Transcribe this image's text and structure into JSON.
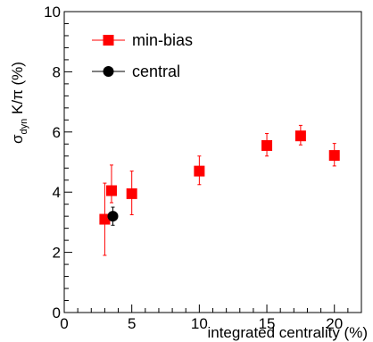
{
  "chart_data": {
    "type": "scatter",
    "xlabel": "integrated centrality (%)",
    "ylabel_main": "σ",
    "ylabel_sub": "dyn",
    "ylabel_rest": " K/π (%)",
    "xlim": [
      0,
      22
    ],
    "ylim": [
      0,
      10
    ],
    "x_ticks": [
      0,
      5,
      10,
      15,
      20
    ],
    "y_ticks": [
      0,
      2,
      4,
      6,
      8,
      10
    ],
    "x_tick_labels": [
      "0",
      "5",
      "10",
      "15",
      "20"
    ],
    "y_tick_labels": [
      "0",
      "2",
      "4",
      "6",
      "8",
      "10"
    ],
    "grid": false,
    "legend_position": "top-left",
    "series": [
      {
        "name": "min-bias",
        "color": "#ff0000",
        "marker": "square",
        "points": [
          {
            "x": 3.0,
            "y": 3.1,
            "err_low": 1.2,
            "err_high": 1.2
          },
          {
            "x": 3.5,
            "y": 4.05,
            "err_low": 0.4,
            "err_high": 0.85
          },
          {
            "x": 5.0,
            "y": 3.95,
            "err_low": 0.7,
            "err_high": 0.75
          },
          {
            "x": 10.0,
            "y": 4.7,
            "err_low": 0.45,
            "err_high": 0.5
          },
          {
            "x": 15.0,
            "y": 5.55,
            "err_low": 0.35,
            "err_high": 0.4
          },
          {
            "x": 17.5,
            "y": 5.87,
            "err_low": 0.3,
            "err_high": 0.35
          },
          {
            "x": 20.0,
            "y": 5.22,
            "err_low": 0.35,
            "err_high": 0.4
          }
        ]
      },
      {
        "name": "central",
        "color": "#000000",
        "marker": "circle",
        "points": [
          {
            "x": 3.6,
            "y": 3.2,
            "err_low": 0.3,
            "err_high": 0.3
          }
        ]
      }
    ]
  }
}
